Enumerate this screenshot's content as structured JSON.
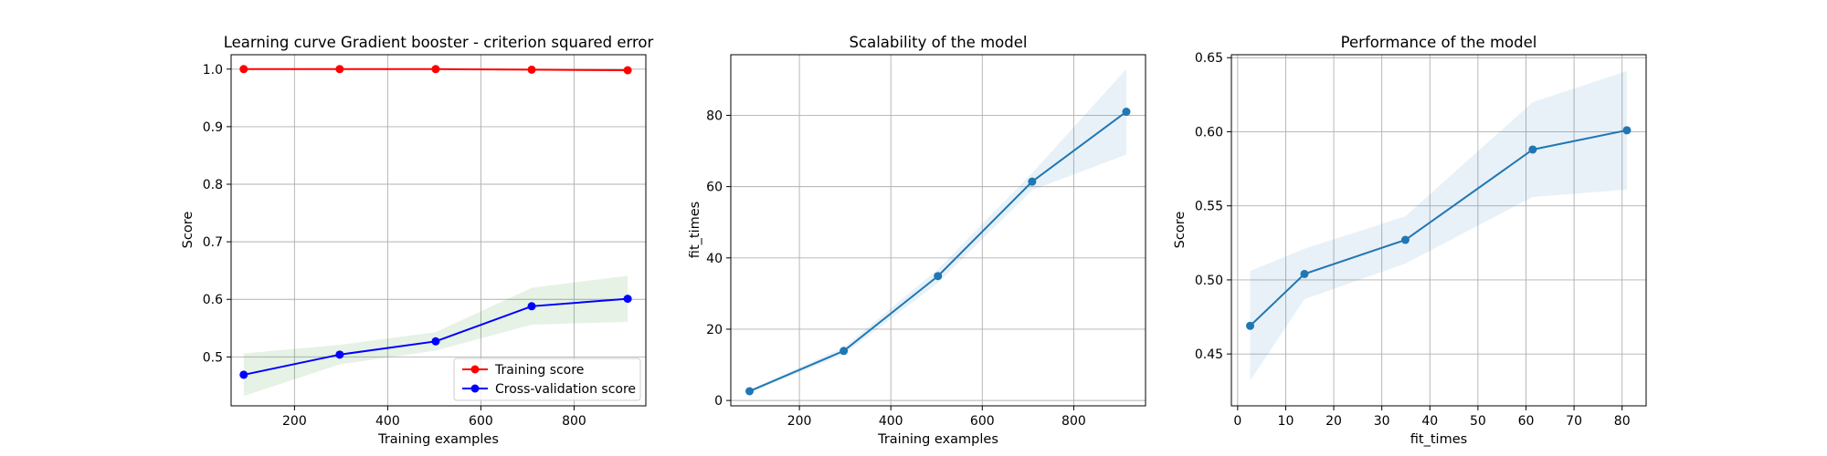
{
  "chart_data": [
    {
      "type": "line",
      "title": "Learning curve Gradient booster - criterion squared error",
      "xlabel": "Training examples",
      "ylabel": "Score",
      "xlim": [
        64,
        954
      ],
      "ylim": [
        0.415,
        1.025
      ],
      "xticks": [
        200,
        400,
        600,
        800
      ],
      "yticks": [
        0.5,
        0.6,
        0.7,
        0.8,
        0.9,
        1.0
      ],
      "grid": true,
      "legend_position": "lower-right",
      "x": [
        91,
        297,
        503,
        709,
        915
      ],
      "series": [
        {
          "name": "Training score",
          "color": "#ff0000",
          "marker": "circle",
          "values": [
            1.0,
            1.0,
            1.0,
            0.999,
            0.998
          ],
          "band_lower": [
            0.999,
            0.999,
            0.999,
            0.998,
            0.996
          ],
          "band_upper": [
            1.0,
            1.0,
            1.0,
            1.0,
            1.0
          ],
          "band_color": "#ff0000"
        },
        {
          "name": "Cross-validation score",
          "color": "#0000ff",
          "marker": "circle",
          "values": [
            0.469,
            0.504,
            0.527,
            0.588,
            0.601
          ],
          "band_lower": [
            0.432,
            0.487,
            0.511,
            0.556,
            0.561
          ],
          "band_upper": [
            0.506,
            0.521,
            0.543,
            0.62,
            0.641
          ],
          "band_color": "#008000"
        }
      ]
    },
    {
      "type": "line",
      "title": "Scalability of the model",
      "xlabel": "Training examples",
      "ylabel": "fit_times",
      "xlim": [
        50,
        957
      ],
      "ylim": [
        -1.5,
        97
      ],
      "xticks": [
        200,
        400,
        600,
        800
      ],
      "yticks": [
        0,
        20,
        40,
        60,
        80
      ],
      "grid": true,
      "x": [
        91,
        297,
        503,
        709,
        915
      ],
      "series": [
        {
          "color": "#1f77b4",
          "marker": "circle",
          "values": [
            2.6,
            13.9,
            34.9,
            61.4,
            81.0
          ],
          "band_lower": [
            2.2,
            12.9,
            33.0,
            59.0,
            69.0
          ],
          "band_upper": [
            3.0,
            14.9,
            36.8,
            63.8,
            93.0
          ],
          "band_color": "#1f77b4"
        }
      ]
    },
    {
      "type": "line",
      "title": "Performance of the model",
      "xlabel": "fit_times",
      "ylabel": "Score",
      "xlim": [
        -1.3,
        85
      ],
      "ylim": [
        0.415,
        0.652
      ],
      "xticks": [
        0,
        10,
        20,
        30,
        40,
        50,
        60,
        70,
        80
      ],
      "yticks": [
        0.45,
        0.5,
        0.55,
        0.6,
        0.65
      ],
      "grid": true,
      "x": [
        2.6,
        13.9,
        34.9,
        61.4,
        81.0
      ],
      "series": [
        {
          "color": "#1f77b4",
          "marker": "circle",
          "values": [
            0.469,
            0.504,
            0.527,
            0.588,
            0.601
          ],
          "band_lower": [
            0.432,
            0.487,
            0.511,
            0.556,
            0.561
          ],
          "band_upper": [
            0.506,
            0.521,
            0.543,
            0.62,
            0.641
          ],
          "band_color": "#1f77b4"
        }
      ]
    }
  ]
}
